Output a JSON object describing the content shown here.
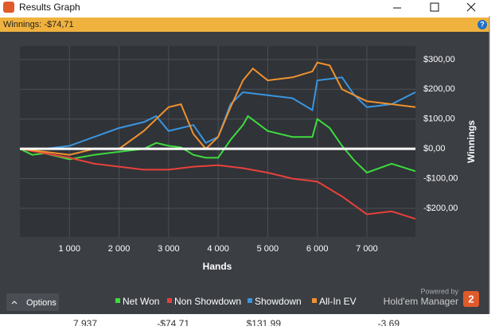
{
  "window": {
    "title": "Results Graph",
    "status": "Winnings: -$74,71",
    "help": "?",
    "options": "Options",
    "powered_by": "Powered by",
    "brand": "Hold'em Manager",
    "brand_logo": "2",
    "background_row": [
      "7,937",
      "-$74,71",
      "$131,99",
      "-3,69"
    ]
  },
  "chart_data": {
    "type": "line",
    "xlabel": "Hands",
    "ylabel": "Winnings",
    "grid": true,
    "xlim": [
      0,
      7980
    ],
    "ylim": [
      -296,
      345
    ],
    "xticks": [
      {
        "value": 1000,
        "label": "1 000"
      },
      {
        "value": 2000,
        "label": "2 000"
      },
      {
        "value": 3000,
        "label": "3 000"
      },
      {
        "value": 4000,
        "label": "4 000"
      },
      {
        "value": 5000,
        "label": "5 000"
      },
      {
        "value": 6000,
        "label": "6 000"
      },
      {
        "value": 7000,
        "label": "7 000"
      }
    ],
    "yticks": [
      {
        "value": -200,
        "label": "-$200,00"
      },
      {
        "value": -100,
        "label": "-$100,00"
      },
      {
        "value": 0,
        "label": "$0,00"
      },
      {
        "value": 100,
        "label": "$100,00"
      },
      {
        "value": 200,
        "label": "$200,00"
      },
      {
        "value": 300,
        "label": "$300,00"
      }
    ],
    "series": [
      {
        "name": "Net Won",
        "color": "#3ddc3d",
        "x": [
          0,
          250,
          500,
          750,
          1000,
          1500,
          2000,
          2500,
          2750,
          3000,
          3250,
          3500,
          3750,
          4000,
          4250,
          4500,
          4600,
          5000,
          5500,
          5900,
          6000,
          6250,
          6500,
          6750,
          7000,
          7500,
          7980
        ],
        "values": [
          0,
          -20,
          -15,
          -25,
          -35,
          -20,
          -10,
          0,
          20,
          10,
          5,
          -20,
          -30,
          -30,
          30,
          80,
          110,
          60,
          40,
          40,
          100,
          70,
          10,
          -40,
          -80,
          -50,
          -75
        ]
      },
      {
        "name": "Non Showdown",
        "color": "#e8413c",
        "x": [
          0,
          1000,
          1500,
          2000,
          2500,
          3000,
          3500,
          4000,
          4500,
          5000,
          5500,
          6000,
          6500,
          7000,
          7500,
          7980
        ],
        "values": [
          0,
          -30,
          -50,
          -60,
          -70,
          -70,
          -60,
          -55,
          -65,
          -80,
          -100,
          -110,
          -160,
          -220,
          -210,
          -235
        ]
      },
      {
        "name": "Showdown",
        "color": "#3a95e0",
        "x": [
          0,
          500,
          1000,
          1500,
          2000,
          2500,
          2750,
          3000,
          3250,
          3500,
          3750,
          4000,
          4250,
          4500,
          5000,
          5500,
          5900,
          6000,
          6500,
          6750,
          7000,
          7500,
          7980
        ],
        "values": [
          0,
          0,
          10,
          40,
          70,
          90,
          110,
          60,
          70,
          80,
          20,
          40,
          150,
          190,
          180,
          170,
          130,
          230,
          240,
          180,
          140,
          150,
          190
        ]
      },
      {
        "name": "All-In EV",
        "color": "#f0922e",
        "x": [
          0,
          500,
          1000,
          1500,
          2000,
          2500,
          3000,
          3250,
          3500,
          3750,
          4000,
          4250,
          4500,
          4700,
          5000,
          5500,
          5900,
          6000,
          6250,
          6500,
          7000,
          7500,
          7980
        ],
        "values": [
          0,
          -10,
          -20,
          0,
          0,
          60,
          140,
          150,
          50,
          0,
          40,
          140,
          230,
          270,
          230,
          240,
          260,
          290,
          280,
          200,
          160,
          150,
          140
        ]
      }
    ]
  }
}
